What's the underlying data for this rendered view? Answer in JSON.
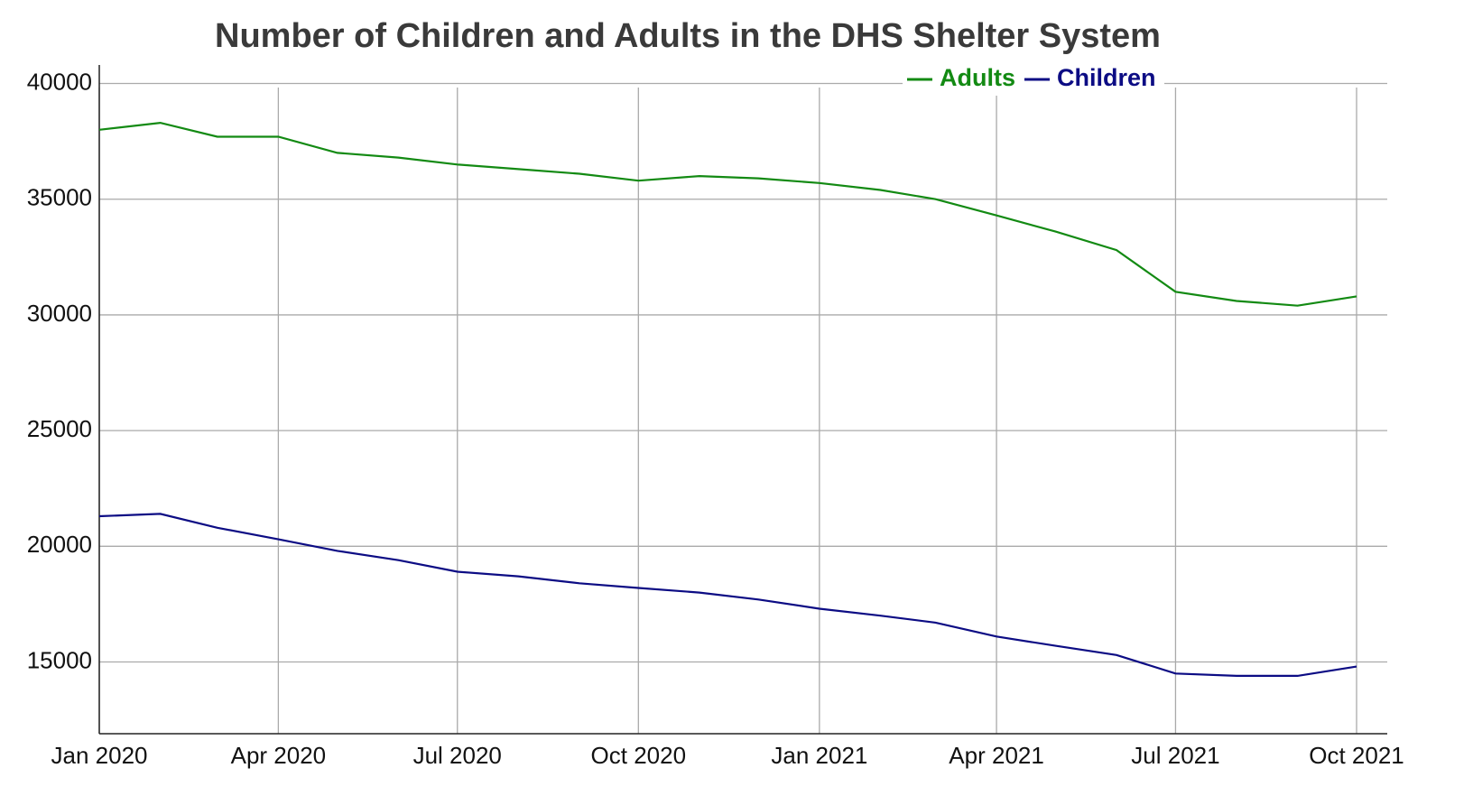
{
  "chart_data": {
    "type": "line",
    "title": "Number of Children and Adults in the DHS Shelter System",
    "x": [
      "2020-01",
      "2020-02",
      "2020-03",
      "2020-04",
      "2020-05",
      "2020-06",
      "2020-07",
      "2020-08",
      "2020-09",
      "2020-10",
      "2020-11",
      "2020-12",
      "2021-01",
      "2021-02",
      "2021-03",
      "2021-04",
      "2021-05",
      "2021-06",
      "2021-07",
      "2021-08",
      "2021-09",
      "2021-10"
    ],
    "series": [
      {
        "name": "Adults",
        "color": "#138a13",
        "values": [
          38000,
          38300,
          37700,
          37700,
          37000,
          36800,
          36500,
          36300,
          36100,
          35800,
          36000,
          35900,
          35700,
          35400,
          35000,
          34300,
          33600,
          32800,
          31000,
          30600,
          30400,
          30800
        ]
      },
      {
        "name": "Children",
        "color": "#0c0c84",
        "values": [
          21300,
          21400,
          20800,
          20300,
          19800,
          19400,
          18900,
          18700,
          18400,
          18200,
          18000,
          17700,
          17300,
          17000,
          16700,
          16100,
          15700,
          15300,
          14500,
          14400,
          14400,
          14800
        ]
      }
    ],
    "xlim": [
      "2020-01",
      "2021-10"
    ],
    "xticks": [
      {
        "value": "2020-01",
        "label": "Jan 2020"
      },
      {
        "value": "2020-04",
        "label": "Apr 2020"
      },
      {
        "value": "2020-07",
        "label": "Jul 2020"
      },
      {
        "value": "2020-10",
        "label": "Oct 2020"
      },
      {
        "value": "2021-01",
        "label": "Jan 2021"
      },
      {
        "value": "2021-04",
        "label": "Apr 2021"
      },
      {
        "value": "2021-07",
        "label": "Jul 2021"
      },
      {
        "value": "2021-10",
        "label": "Oct 2021"
      }
    ],
    "ylim": [
      11900,
      40800
    ],
    "yticks": [
      15000,
      20000,
      25000,
      30000,
      35000,
      40000
    ],
    "grid": true,
    "legend": "top-right"
  }
}
